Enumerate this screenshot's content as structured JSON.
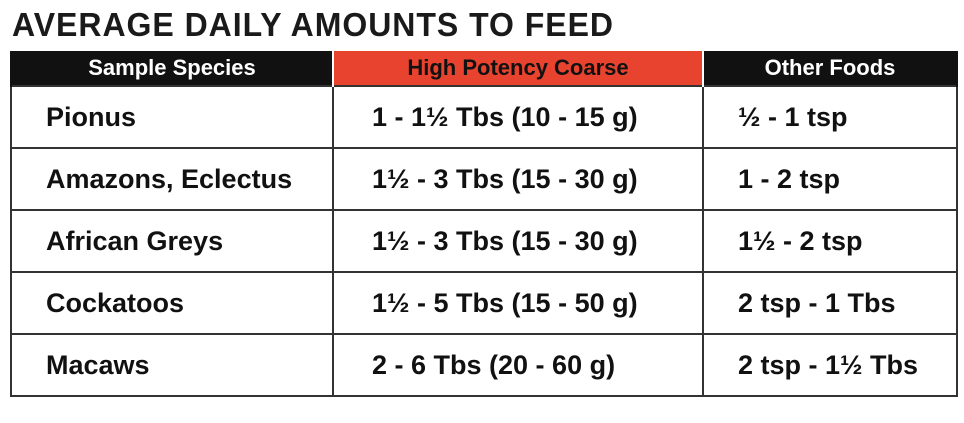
{
  "title": "AVERAGE DAILY AMOUNTS TO FEED",
  "colors": {
    "header_bg": "#111111",
    "highlight_header_bg": "#e8432f",
    "header_text": "#ffffff",
    "body_text": "#111111",
    "grid_line": "#333333"
  },
  "table": {
    "headers": [
      "Sample Species",
      "High Potency Coarse",
      "Other Foods"
    ],
    "highlighted_header_index": 1,
    "rows": [
      {
        "species": "Pionus",
        "high_potency_coarse": "1 - 1½ Tbs (10 - 15 g)",
        "other_foods": "½  - 1 tsp"
      },
      {
        "species": "Amazons, Eclectus",
        "high_potency_coarse": "1½ - 3 Tbs (15 - 30 g)",
        "other_foods": "1 - 2 tsp"
      },
      {
        "species": "African Greys",
        "high_potency_coarse": "1½ - 3 Tbs (15 - 30 g)",
        "other_foods": "1½ - 2 tsp"
      },
      {
        "species": "Cockatoos",
        "high_potency_coarse": "1½ - 5 Tbs (15 - 50 g)",
        "other_foods": "2 tsp - 1 Tbs"
      },
      {
        "species": "Macaws",
        "high_potency_coarse": "2 - 6 Tbs (20 - 60 g)",
        "other_foods": "2 tsp - 1½ Tbs"
      }
    ]
  }
}
